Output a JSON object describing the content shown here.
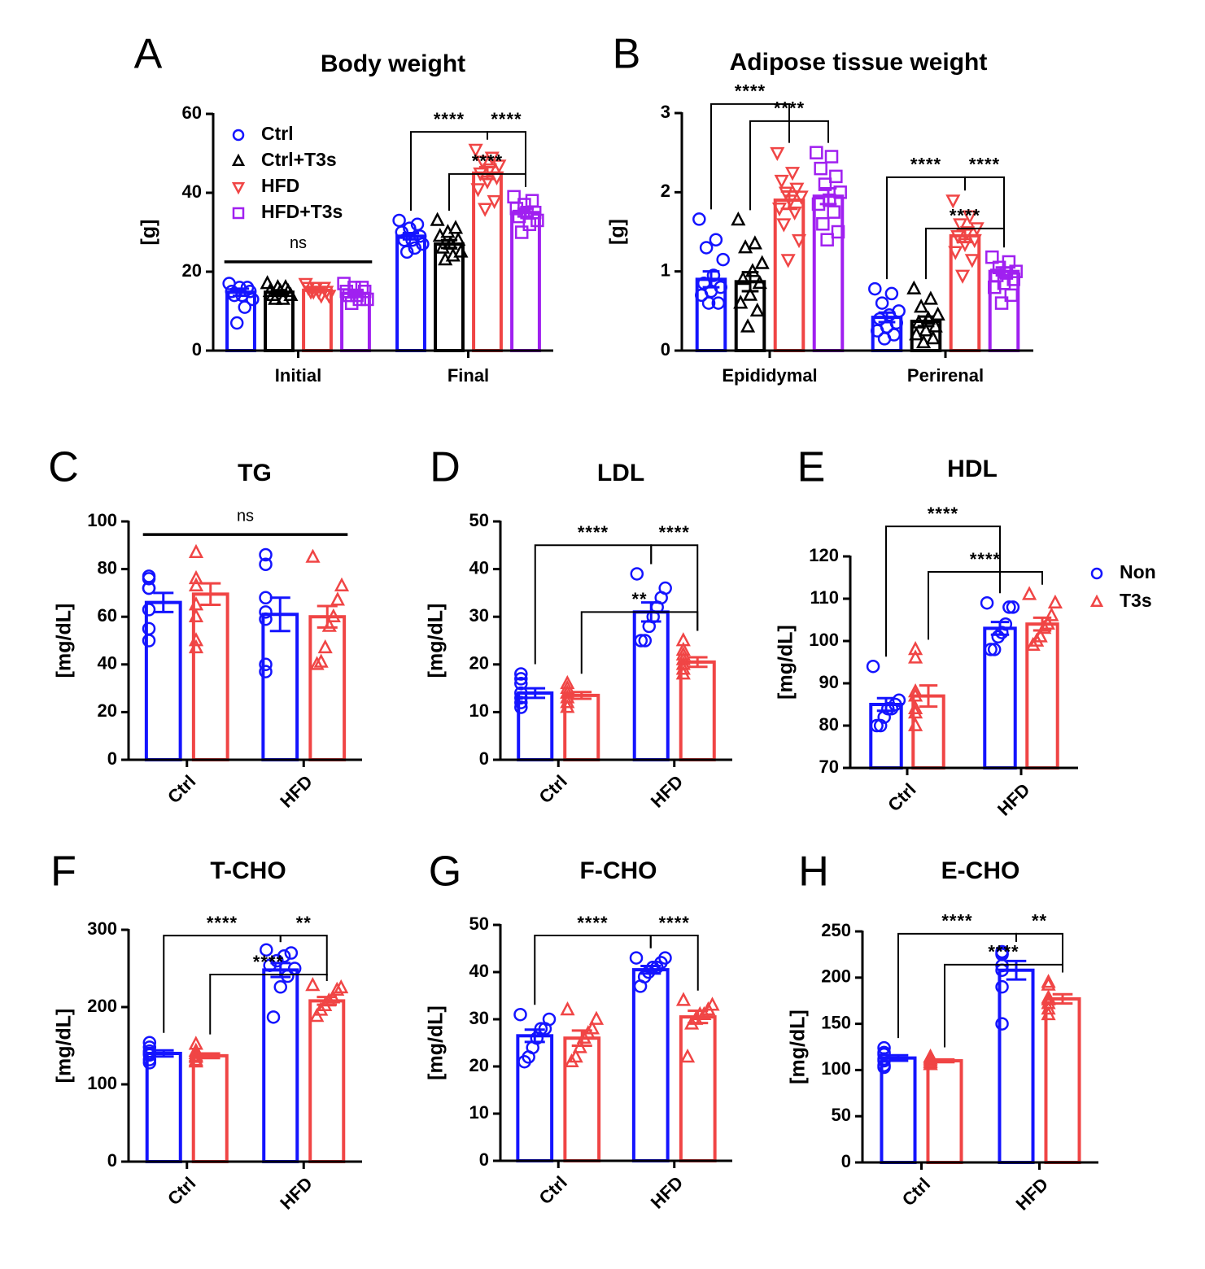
{
  "chart_data": [
    {
      "type": "bar",
      "panel": "A",
      "title": "Body weight",
      "ylabel": "[g]",
      "categories": [
        "Initial",
        "Final"
      ],
      "ylim": [
        0,
        60
      ],
      "yticks": [
        0,
        20,
        40,
        60
      ],
      "legend": "upper left",
      "series": [
        {
          "name": "Ctrl",
          "color": "#1414ff",
          "marker": "o",
          "values": [
            14.8,
            29.0
          ],
          "errors": [
            0.9,
            0.8
          ],
          "points": [
            [
              17,
              16,
              16,
              15,
              15,
              14,
              14,
              13,
              11,
              7
            ],
            [
              33,
              32,
              31,
              30,
              29,
              28,
              28,
              27,
              26,
              25
            ]
          ]
        },
        {
          "name": "Ctrl+T3s",
          "color": "#000000",
          "marker": "^",
          "values": [
            14.8,
            27.0
          ],
          "errors": [
            0.5,
            1.0
          ],
          "points": [
            [
              17,
              16,
              16,
              15,
              15,
              15,
              14,
              14,
              13,
              13
            ],
            [
              33,
              31,
              30,
              29,
              28,
              27,
              26,
              25,
              24,
              23
            ]
          ]
        },
        {
          "name": "HFD",
          "color": "#f04545",
          "marker": "v",
          "values": [
            15.3,
            45.0
          ],
          "errors": [
            0.5,
            1.5
          ],
          "points": [
            [
              17,
              16,
              16,
              16,
              15,
              15,
              15,
              14,
              14,
              15
            ],
            [
              51,
              49,
              48,
              47,
              46,
              45,
              44,
              43,
              41,
              38,
              36
            ]
          ]
        },
        {
          "name": "HFD+T3s",
          "color": "#a020f0",
          "marker": "s",
          "values": [
            14.5,
            35.0
          ],
          "errors": [
            0.6,
            1.0
          ],
          "points": [
            [
              17,
              16,
              16,
              15,
              15,
              14,
              14,
              13,
              13,
              12
            ],
            [
              39,
              38,
              37,
              36,
              35,
              35,
              34,
              33,
              32,
              30
            ]
          ]
        }
      ],
      "annotations": [
        "ns",
        "****",
        "****",
        "****"
      ]
    },
    {
      "type": "bar",
      "panel": "B",
      "title": "Adipose tissue weight",
      "ylabel": "[g]",
      "categories": [
        "Epididymal",
        "Perirenal"
      ],
      "ylim": [
        0,
        3
      ],
      "yticks": [
        0,
        1,
        2,
        3
      ],
      "series": [
        {
          "name": "Ctrl",
          "color": "#1414ff",
          "marker": "o",
          "values": [
            0.9,
            0.42
          ],
          "errors": [
            0.1,
            0.06
          ],
          "points": [
            [
              1.66,
              1.4,
              1.3,
              1.15,
              0.95,
              0.85,
              0.8,
              0.75,
              0.7,
              0.6,
              0.6
            ],
            [
              0.78,
              0.72,
              0.6,
              0.5,
              0.45,
              0.4,
              0.35,
              0.3,
              0.25,
              0.2,
              0.15
            ]
          ]
        },
        {
          "name": "Ctrl+T3s",
          "color": "#000000",
          "marker": "^",
          "values": [
            0.87,
            0.37
          ],
          "errors": [
            0.12,
            0.06
          ],
          "points": [
            [
              1.65,
              1.35,
              1.3,
              1.1,
              1.0,
              0.9,
              0.85,
              0.7,
              0.6,
              0.5,
              0.3
            ],
            [
              0.78,
              0.65,
              0.55,
              0.45,
              0.4,
              0.35,
              0.3,
              0.25,
              0.2,
              0.15,
              0.1
            ]
          ]
        },
        {
          "name": "HFD",
          "color": "#f04545",
          "marker": "v",
          "values": [
            1.9,
            1.45
          ],
          "errors": [
            0.11,
            0.08
          ],
          "points": [
            [
              2.5,
              2.25,
              2.15,
              2.05,
              2.0,
              1.95,
              1.9,
              1.8,
              1.75,
              1.6,
              1.4,
              1.15
            ],
            [
              1.9,
              1.7,
              1.6,
              1.55,
              1.5,
              1.45,
              1.4,
              1.35,
              1.25,
              1.15,
              0.95
            ]
          ]
        },
        {
          "name": "HFD+T3s",
          "color": "#a020f0",
          "marker": "s",
          "values": [
            1.95,
            1.0
          ],
          "errors": [
            0.1,
            0.05
          ],
          "points": [
            [
              2.5,
              2.45,
              2.3,
              2.2,
              2.1,
              2.0,
              1.9,
              1.85,
              1.75,
              1.6,
              1.5,
              1.4
            ],
            [
              1.18,
              1.12,
              1.05,
              1.0,
              0.98,
              0.95,
              0.9,
              0.85,
              0.8,
              0.7,
              0.6
            ]
          ]
        }
      ],
      "annotations": [
        "****",
        "****",
        "****",
        "****",
        "****"
      ]
    },
    {
      "type": "bar",
      "panel": "C",
      "title": "TG",
      "ylabel": "[mg/dL]",
      "categories": [
        "Ctrl",
        "HFD"
      ],
      "ylim": [
        0,
        100
      ],
      "yticks": [
        0,
        20,
        40,
        60,
        80,
        100
      ],
      "series": [
        {
          "name": "Non",
          "color": "#1414ff",
          "marker": "o",
          "values": [
            66,
            61
          ],
          "errors": [
            4,
            7
          ],
          "points": [
            [
              77,
              76,
              72,
              72,
              63,
              55,
              50
            ],
            [
              86,
              82,
              68,
              62,
              59,
              40,
              37
            ]
          ]
        },
        {
          "name": "T3s",
          "color": "#f04545",
          "marker": "^",
          "values": [
            69.5,
            60
          ],
          "errors": [
            4.5,
            4.5
          ],
          "points": [
            [
              87,
              76,
              73,
              65,
              60,
              50,
              47
            ],
            [
              85,
              73,
              67,
              60,
              56,
              47,
              41,
              40
            ]
          ]
        }
      ],
      "annotations": [
        "ns"
      ]
    },
    {
      "type": "bar",
      "panel": "D",
      "title": "LDL",
      "ylabel": "[mg/dL]",
      "categories": [
        "Ctrl",
        "HFD"
      ],
      "ylim": [
        0,
        50
      ],
      "yticks": [
        0,
        10,
        20,
        30,
        40,
        50
      ],
      "series": [
        {
          "name": "Non",
          "color": "#1414ff",
          "marker": "o",
          "values": [
            14,
            31
          ],
          "errors": [
            1,
            2
          ],
          "points": [
            [
              18,
              17,
              16,
              14,
              13,
              12,
              11
            ],
            [
              39,
              36,
              34,
              32,
              30,
              28,
              25,
              25
            ]
          ]
        },
        {
          "name": "T3s",
          "color": "#f04545",
          "marker": "^",
          "values": [
            13.5,
            20.5
          ],
          "errors": [
            0.7,
            1
          ],
          "points": [
            [
              16,
              15,
              14,
              14,
              13,
              12,
              11
            ],
            [
              25,
              23,
              22,
              21,
              20,
              19,
              18
            ]
          ]
        }
      ],
      "annotations": [
        "****",
        "****",
        "**"
      ]
    },
    {
      "type": "bar",
      "panel": "E",
      "title": "HDL",
      "ylabel": "[mg/dL]",
      "categories": [
        "Ctrl",
        "HFD"
      ],
      "ylim": [
        70,
        120
      ],
      "yticks": [
        70,
        80,
        90,
        100,
        110,
        120
      ],
      "legend": "right",
      "series": [
        {
          "name": "Non",
          "color": "#1414ff",
          "marker": "o",
          "values": [
            85,
            103
          ],
          "errors": [
            1.5,
            1.5
          ],
          "points": [
            [
              94,
              86,
              85,
              84,
              84,
              82,
              80,
              80
            ],
            [
              109,
              108,
              108,
              104,
              102,
              101,
              98,
              98
            ]
          ]
        },
        {
          "name": "T3s",
          "color": "#f04545",
          "marker": "^",
          "values": [
            87,
            104
          ],
          "errors": [
            2.5,
            1.5
          ],
          "points": [
            [
              98,
              96,
              88,
              87,
              84,
              83,
              80
            ],
            [
              111,
              109,
              106,
              104,
              103,
              101,
              100,
              99
            ]
          ]
        }
      ],
      "annotations": [
        "****",
        "****"
      ]
    },
    {
      "type": "bar",
      "panel": "F",
      "title": "T-CHO",
      "ylabel": "[mg/dL]",
      "categories": [
        "Ctrl",
        "HFD"
      ],
      "ylim": [
        0,
        300
      ],
      "yticks": [
        0,
        100,
        200,
        300
      ],
      "series": [
        {
          "name": "Non",
          "color": "#1414ff",
          "marker": "o",
          "values": [
            140,
            248
          ],
          "errors": [
            4,
            9
          ],
          "points": [
            [
              154,
              148,
              143,
              140,
              138,
              132,
              128
            ],
            [
              274,
              270,
              266,
              260,
              254,
              250,
              240,
              226,
              187
            ]
          ]
        },
        {
          "name": "T3s",
          "color": "#f04545",
          "marker": "^",
          "values": [
            137,
            208
          ],
          "errors": [
            3,
            5
          ],
          "points": [
            [
              152,
              143,
              140,
              137,
              135,
              131,
              129
            ],
            [
              228,
              225,
              222,
              212,
              208,
              202,
              196,
              188
            ]
          ]
        }
      ],
      "annotations": [
        "****",
        "**",
        "****"
      ]
    },
    {
      "type": "bar",
      "panel": "G",
      "title": "F-CHO",
      "ylabel": "[mg/dL]",
      "categories": [
        "Ctrl",
        "HFD"
      ],
      "ylim": [
        0,
        50
      ],
      "yticks": [
        0,
        10,
        20,
        30,
        40,
        50
      ],
      "series": [
        {
          "name": "Non",
          "color": "#1414ff",
          "marker": "o",
          "values": [
            26.5,
            40.5
          ],
          "errors": [
            1.3,
            0.8
          ],
          "points": [
            [
              31,
              30,
              28,
              28,
              26,
              24,
              22,
              21
            ],
            [
              43,
              43,
              42,
              41,
              41,
              40,
              39,
              37
            ]
          ]
        },
        {
          "name": "T3s",
          "color": "#f04545",
          "marker": "^",
          "values": [
            26,
            30.5
          ],
          "errors": [
            1.6,
            1.3
          ],
          "points": [
            [
              32,
              30,
              28,
              27,
              26,
              24,
              22,
              21
            ],
            [
              34,
              33,
              32,
              31,
              31,
              30,
              29,
              22
            ]
          ]
        }
      ],
      "annotations": [
        "****",
        "****"
      ]
    },
    {
      "type": "bar",
      "panel": "H",
      "title": "E-CHO",
      "ylabel": "[mg/dL]",
      "categories": [
        "Ctrl",
        "HFD"
      ],
      "ylim": [
        0,
        250
      ],
      "yticks": [
        0,
        50,
        100,
        150,
        200,
        250
      ],
      "series": [
        {
          "name": "Non",
          "color": "#1414ff",
          "marker": "o",
          "values": [
            113,
            208
          ],
          "errors": [
            3,
            10
          ],
          "points": [
            [
              124,
              119,
              117,
              112,
              110,
              105,
              103
            ],
            [
              228,
              226,
              225,
              213,
              208,
              190,
              150
            ]
          ]
        },
        {
          "name": "T3s",
          "color": "#f04545",
          "marker": "^",
          "values": [
            110,
            177
          ],
          "errors": [
            1.5,
            5
          ],
          "points": [
            [
              114,
              114,
              112,
              110,
              108,
              106,
              106
            ],
            [
              195,
              192,
              178,
              176,
              172,
              166,
              160
            ]
          ]
        }
      ],
      "annotations": [
        "****",
        "**",
        "****"
      ]
    }
  ]
}
